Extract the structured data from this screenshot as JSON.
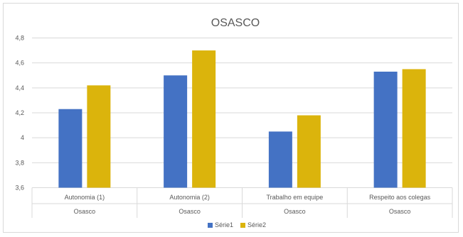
{
  "chart_data": {
    "type": "bar",
    "title": "OSASCO",
    "categories": [
      "Autonomia (1)",
      "Autonomia (2)",
      "Trabalho em equipe",
      "Respeito aos colegas"
    ],
    "group_labels": [
      "Osasco",
      "Osasco",
      "Osasco",
      "Osasco"
    ],
    "series": [
      {
        "name": "Série1",
        "color": "#4472c4",
        "values": [
          4.23,
          4.5,
          4.05,
          4.53
        ]
      },
      {
        "name": "Série2",
        "color": "#dbb40c",
        "values": [
          4.42,
          4.7,
          4.18,
          4.55
        ]
      }
    ],
    "yticks": [
      "3,6",
      "3,8",
      "4",
      "4,2",
      "4,4",
      "4,6",
      "4,8"
    ],
    "ytick_values": [
      3.6,
      3.8,
      4.0,
      4.2,
      4.4,
      4.6,
      4.8
    ],
    "ylim": [
      3.6,
      4.8
    ],
    "grid": true,
    "legend": "bottom-center",
    "xlabel": "",
    "ylabel": ""
  }
}
